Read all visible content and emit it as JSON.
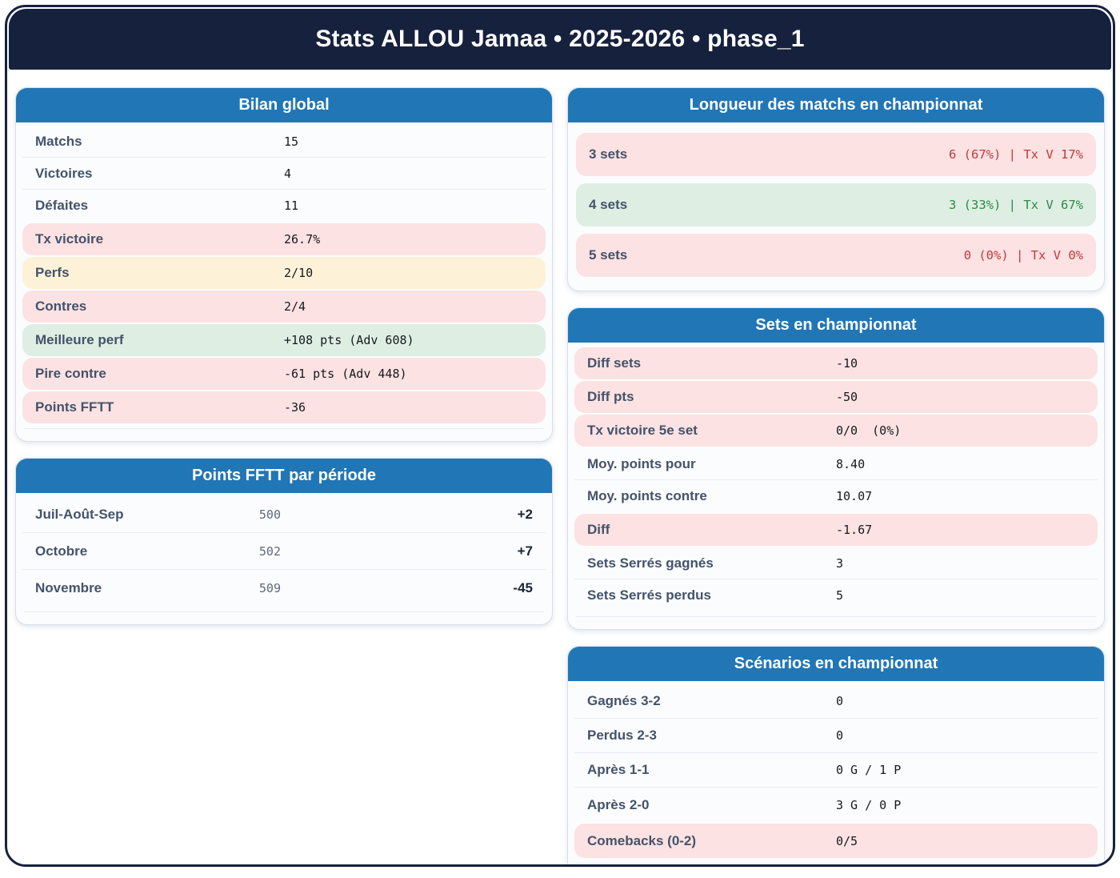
{
  "header": {
    "title": "Stats ALLOU Jamaa • 2025-2026 • phase_1"
  },
  "colors": {
    "header_bg": "#16213d",
    "card_header_bg": "#2176b5",
    "row_pink": "#fce2e2",
    "row_yellow": "#fdf2d8",
    "row_green": "#deeee3",
    "text_negative": "#c0393b",
    "text_positive": "#2d8a44",
    "label": "#44536a"
  },
  "cards": {
    "bilan": {
      "title": "Bilan global",
      "rows": [
        {
          "label": "Matchs",
          "value": "15"
        },
        {
          "label": "Victoires",
          "value": "4"
        },
        {
          "label": "Défaites",
          "value": "11"
        },
        {
          "label": "Tx victoire",
          "value": "26.7%"
        },
        {
          "label": "Perfs",
          "value": "2/10"
        },
        {
          "label": "Contres",
          "value": "2/4"
        },
        {
          "label": "Meilleure perf",
          "value": "+108 pts (Adv 608)"
        },
        {
          "label": "Pire contre",
          "value": "-61 pts (Adv 448)"
        },
        {
          "label": "Points FFTT",
          "value": "-36"
        }
      ]
    },
    "points_periode": {
      "title": "Points FFTT par période",
      "rows": [
        {
          "label": "Juil-Août-Sep",
          "value": "500",
          "delta": "+2"
        },
        {
          "label": "Octobre",
          "value": "502",
          "delta": "+7"
        },
        {
          "label": "Novembre",
          "value": "509",
          "delta": "-45"
        }
      ]
    },
    "longueur": {
      "title": "Longueur des matchs en championnat",
      "rows": [
        {
          "label": "3 sets",
          "value": "6 (67%) | Tx V 17%"
        },
        {
          "label": "4 sets",
          "value": "3 (33%) | Tx V 67%"
        },
        {
          "label": "5 sets",
          "value": "0 (0%) | Tx V 0%"
        }
      ]
    },
    "sets": {
      "title": "Sets en championnat",
      "rows": [
        {
          "label": "Diff sets",
          "value": "-10"
        },
        {
          "label": "Diff pts",
          "value": "-50"
        },
        {
          "label": "Tx victoire 5e set",
          "value": "0/0  (0%)"
        },
        {
          "label": "Moy. points pour",
          "value": "8.40"
        },
        {
          "label": "Moy. points contre",
          "value": "10.07"
        },
        {
          "label": "Diff",
          "value": "-1.67"
        },
        {
          "label": "Sets Serrés gagnés",
          "value": "3"
        },
        {
          "label": "Sets Serrés perdus",
          "value": "5"
        }
      ]
    },
    "scenarios": {
      "title": "Scénarios en championnat",
      "rows": [
        {
          "label": "Gagnés 3-2",
          "value": "0"
        },
        {
          "label": "Perdus 2-3",
          "value": "0"
        },
        {
          "label": "Après 1-1",
          "value": "0 G / 1 P"
        },
        {
          "label": "Après 2-0",
          "value": "3 G / 0 P"
        },
        {
          "label": "Comebacks (0-2)",
          "value": "0/5"
        }
      ]
    }
  }
}
